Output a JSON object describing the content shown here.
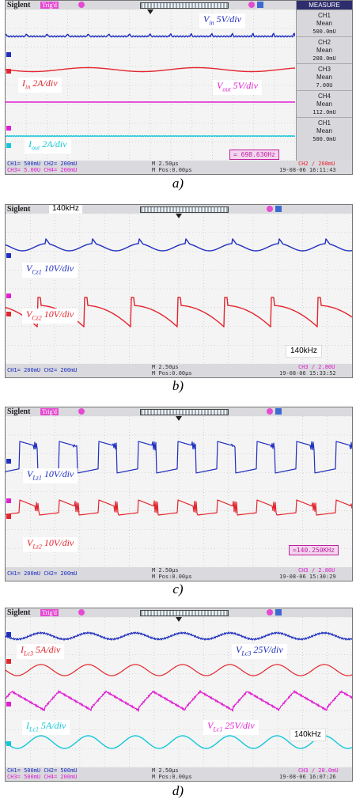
{
  "colors": {
    "ch1": "#1f2fbf",
    "ch2": "#e3262e",
    "ch3": "#e01fd1",
    "ch4": "#13c7d9",
    "grid": "#b9b9b9"
  },
  "icons": [
    "trigger-arrow-icon",
    "ch-marker-icon",
    "usb-icon",
    "printer-icon"
  ],
  "panels": {
    "a": {
      "brand": "Siglent",
      "mode": "Trig'd",
      "caption": "a)",
      "labels": {
        "vin": {
          "main": "V",
          "sub": "in",
          "rest": " 5V/div"
        },
        "iin": {
          "main": "I",
          "sub": "in",
          "rest": " 2A/div"
        },
        "vout": {
          "main": "V",
          "sub": "out",
          "rest": " 5V/div"
        },
        "iout": {
          "main": "I",
          "sub": "out",
          "rest": " 2A/div"
        }
      },
      "freq": "= 698.630Hz",
      "measure": {
        "title": "MEASURE",
        "items": [
          {
            "ch": "CH1",
            "type": "Mean",
            "value": "500.0mU"
          },
          {
            "ch": "CH2",
            "type": "Mean",
            "value": "208.0mU"
          },
          {
            "ch": "CH3",
            "type": "Mean",
            "value": "7.00U"
          },
          {
            "ch": "CH4",
            "type": "Mean",
            "value": "112.0mU"
          },
          {
            "ch": "CH1",
            "type": "Mean",
            "value": "500.0mU"
          }
        ]
      },
      "footer": {
        "l1": "CH1= 500mU   CH2= 200mU",
        "l2": "CH3= 5.00U   CH4= 200mU",
        "c1": "M 2.50μs",
        "c2": "M Pos:0.00μs",
        "r1": "CH2 / 208mU",
        "r2": "19-08-06 16:11:43"
      }
    },
    "b": {
      "brand": "Siglent",
      "freq_box": "140kHz",
      "caption": "b)",
      "labels": {
        "vcz1": {
          "main": "V",
          "sub": "Cz1",
          "rest": " 10V/div"
        },
        "vcz2": {
          "main": "V",
          "sub": "Cz2",
          "rest": " 10V/div"
        }
      },
      "tag": "140kHz",
      "footer": {
        "l1": "CH1= 200mU   CH2= 200mU",
        "c1": "M 2.50μs",
        "c2": "M Pos:0.00μs",
        "r1": "CH3 / 2.80U",
        "r2": "19-08-06 15:33:52"
      }
    },
    "c": {
      "brand": "Siglent",
      "mode": "Trig'd",
      "caption": "c)",
      "labels": {
        "vlz1": {
          "main": "V",
          "sub": "Lz1",
          "rest": " 10V/div"
        },
        "vlz2": {
          "main": "V",
          "sub": "Lz2",
          "rest": " 10V/div"
        }
      },
      "freq": "=140.250KHz",
      "footer": {
        "l1": "CH1= 200mU   CH2= 200mU",
        "c1": "M 2.50μs",
        "c2": "M Pos:0.00μs",
        "r1": "CH3 / 2.80U",
        "r2": "19-08-06 15:30:29"
      }
    },
    "d": {
      "brand": "Siglent",
      "mode": "Trig'd",
      "caption": "d)",
      "labels": {
        "ilc3": {
          "main": "I",
          "sub": "Lc3",
          "rest": " 5A/div"
        },
        "vlc3": {
          "main": "V",
          "sub": "Lc3",
          "rest": " 25V/div"
        },
        "ilc1": {
          "main": "I",
          "sub": "Lc1",
          "rest": " 5A/div"
        },
        "vlc1": {
          "main": "V",
          "sub": "Lc1",
          "rest": " 25V/div"
        }
      },
      "tag": "140kHz",
      "footer": {
        "l1": "CH1= 500mU   CH2= 500mU",
        "l2": "CH3= 500mU   CH4= 200mU",
        "c1": "M 2.50μs",
        "c2": "M Pos:0.00μs",
        "r1": "CH3 / 20.0mU",
        "r2": "19-08-06 16:07:26"
      }
    }
  },
  "chart_data": [
    {
      "type": "line",
      "panel": "a",
      "series": [
        {
          "name": "Vin",
          "shape": "flat with small spikes"
        },
        {
          "name": "Iin",
          "shape": "ripple"
        },
        {
          "name": "Vout",
          "shape": "flat"
        },
        {
          "name": "Iout",
          "shape": "flat"
        }
      ]
    },
    {
      "type": "line",
      "panel": "b",
      "series": [
        {
          "name": "VCz1",
          "shape": "periodic arcs"
        },
        {
          "name": "VCz2",
          "shape": "periodic arcs"
        }
      ]
    },
    {
      "type": "line",
      "panel": "c",
      "series": [
        {
          "name": "VLz1",
          "shape": "square with ringing"
        },
        {
          "name": "VLz2",
          "shape": "periodic with ringing"
        }
      ]
    },
    {
      "type": "line",
      "panel": "d",
      "series": [
        {
          "name": "VLc3",
          "shape": "ripple"
        },
        {
          "name": "ILc3",
          "shape": "sine"
        },
        {
          "name": "VLc1",
          "shape": "sawtooth"
        },
        {
          "name": "ILc1",
          "shape": "sine"
        }
      ]
    }
  ]
}
